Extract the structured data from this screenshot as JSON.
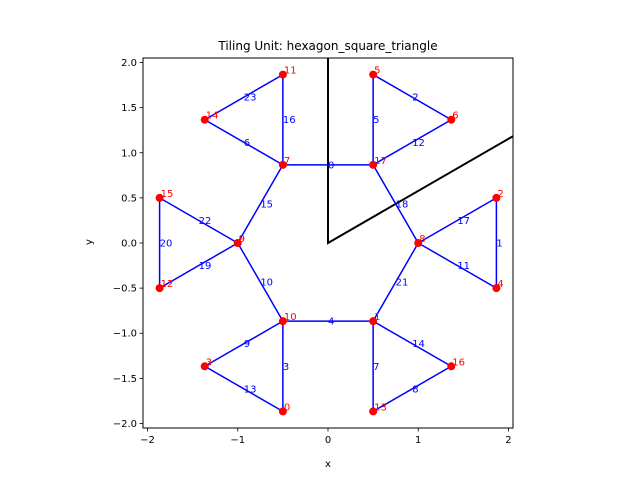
{
  "chart_data": {
    "type": "scatter",
    "title": "Tiling Unit: hexagon_square_triangle",
    "xlabel": "x",
    "ylabel": "y",
    "xlim": [
      -2.05,
      2.05
    ],
    "ylim": [
      -2.05,
      2.05
    ],
    "xticks": [
      -2,
      -1,
      0,
      1,
      2
    ],
    "yticks": [
      -2.0,
      -1.5,
      -1.0,
      -0.5,
      0.0,
      0.5,
      1.0,
      1.5,
      2.0
    ],
    "xtick_labels": [
      "−2",
      "−1",
      "0",
      "1",
      "2"
    ],
    "ytick_labels": [
      "−2.0",
      "−1.5",
      "−1.0",
      "−0.5",
      "0.0",
      "0.5",
      "1.0",
      "1.5",
      "2.0"
    ],
    "grid": false,
    "colors": {
      "edges": "#0000ff",
      "vertices": "#ff0000",
      "wedge": "#000000"
    },
    "vertices": [
      {
        "id": "0",
        "x": -0.5,
        "y": -1.866
      },
      {
        "id": "1",
        "x": 0.5,
        "y": -0.866
      },
      {
        "id": "2",
        "x": 1.866,
        "y": 0.5
      },
      {
        "id": "3",
        "x": -1.366,
        "y": -1.366
      },
      {
        "id": "4",
        "x": 1.866,
        "y": -0.5
      },
      {
        "id": "5",
        "x": 0.5,
        "y": 1.866
      },
      {
        "id": "6",
        "x": 1.366,
        "y": 1.366
      },
      {
        "id": "7",
        "x": -0.5,
        "y": 0.866
      },
      {
        "id": "8",
        "x": 1.0,
        "y": 0.0
      },
      {
        "id": "9",
        "x": -1.0,
        "y": 0.0
      },
      {
        "id": "10",
        "x": -0.5,
        "y": -0.866
      },
      {
        "id": "11",
        "x": -0.5,
        "y": 1.866
      },
      {
        "id": "12",
        "x": -1.866,
        "y": -0.5
      },
      {
        "id": "13",
        "x": 0.5,
        "y": -1.866
      },
      {
        "id": "14",
        "x": -1.366,
        "y": 1.366
      },
      {
        "id": "15",
        "x": -1.866,
        "y": 0.5
      },
      {
        "id": "16",
        "x": 1.366,
        "y": -1.366
      },
      {
        "id": "17",
        "x": 0.5,
        "y": 0.866
      }
    ],
    "edges": [
      {
        "id": "0",
        "from": "7",
        "to": "17"
      },
      {
        "id": "1",
        "from": "2",
        "to": "4"
      },
      {
        "id": "2",
        "from": "5",
        "to": "6"
      },
      {
        "id": "3",
        "from": "10",
        "to": "0"
      },
      {
        "id": "4",
        "from": "10",
        "to": "1"
      },
      {
        "id": "5",
        "from": "17",
        "to": "5"
      },
      {
        "id": "6",
        "from": "14",
        "to": "7"
      },
      {
        "id": "7",
        "from": "1",
        "to": "13"
      },
      {
        "id": "8",
        "from": "13",
        "to": "16"
      },
      {
        "id": "9",
        "from": "10",
        "to": "3"
      },
      {
        "id": "10",
        "from": "9",
        "to": "10"
      },
      {
        "id": "11",
        "from": "8",
        "to": "4"
      },
      {
        "id": "12",
        "from": "17",
        "to": "6"
      },
      {
        "id": "13",
        "from": "3",
        "to": "0"
      },
      {
        "id": "14",
        "from": "1",
        "to": "16"
      },
      {
        "id": "15",
        "from": "7",
        "to": "9"
      },
      {
        "id": "16",
        "from": "7",
        "to": "11"
      },
      {
        "id": "17",
        "from": "8",
        "to": "2"
      },
      {
        "id": "18",
        "from": "17",
        "to": "8"
      },
      {
        "id": "19",
        "from": "12",
        "to": "9"
      },
      {
        "id": "20",
        "from": "15",
        "to": "12"
      },
      {
        "id": "21",
        "from": "8",
        "to": "1"
      },
      {
        "id": "22",
        "from": "15",
        "to": "9"
      },
      {
        "id": "23",
        "from": "14",
        "to": "11"
      }
    ],
    "wedge_lines": [
      {
        "points": [
          [
            0,
            2.05
          ],
          [
            0,
            0
          ],
          [
            2.05,
            1.1836
          ]
        ]
      }
    ]
  }
}
